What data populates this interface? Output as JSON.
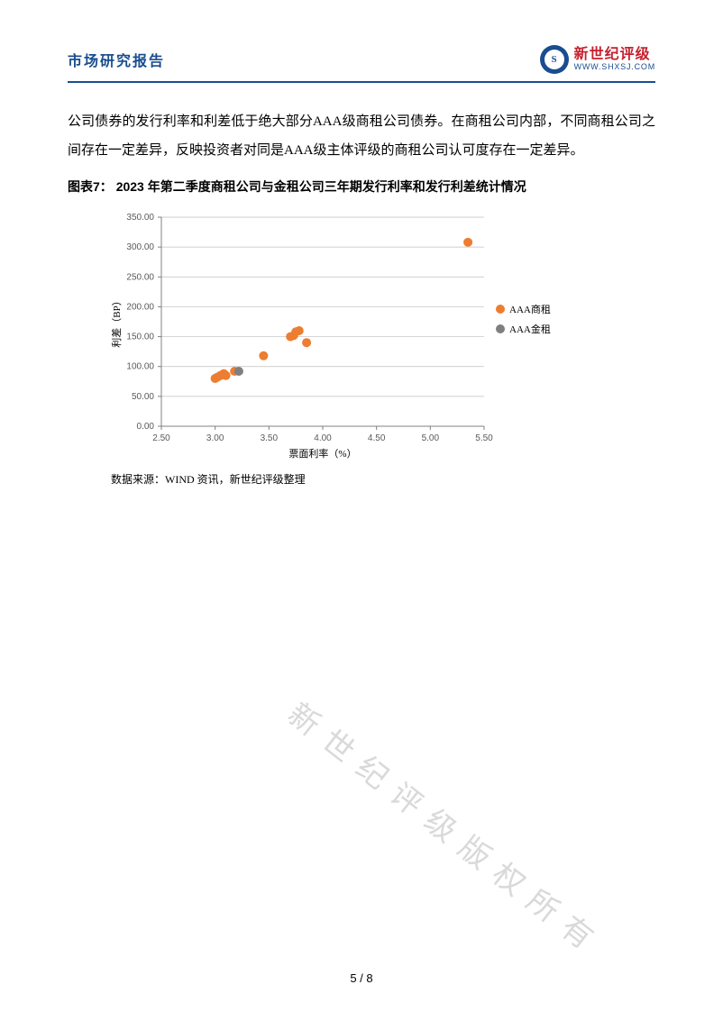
{
  "header": {
    "title": "市场研究报告",
    "brand_name": "新世纪评级",
    "brand_url": "WWW.SHXSJ.COM",
    "logo_glyph": "S"
  },
  "paragraph": "公司债券的发行利率和利差低于绝大部分AAA级商租公司债券。在商租公司内部，不同商租公司之间存在一定差异，反映投资者对同是AAA级主体评级的商租公司认可度存在一定差异。",
  "chart": {
    "caption_prefix": "图表7：",
    "caption": "2023 年第二季度商租公司与金租公司三年期发行利率和发行利差统计情况",
    "type": "scatter",
    "xlabel": "票面利率（%）",
    "ylabel": "利差（BP）",
    "xlim": [
      2.5,
      5.5
    ],
    "xtick_step": 0.5,
    "xticks": [
      "2.50",
      "3.00",
      "3.50",
      "4.00",
      "4.50",
      "5.00",
      "5.50"
    ],
    "ylim": [
      0.0,
      350.0
    ],
    "ytick_step": 50.0,
    "yticks": [
      "0.00",
      "50.00",
      "100.00",
      "150.00",
      "200.00",
      "250.00",
      "300.00",
      "350.00"
    ],
    "background_color": "#ffffff",
    "grid_color": "#bfbfbf",
    "axis_color": "#808080",
    "tick_fontsize": 10,
    "label_fontsize": 11,
    "marker_size": 5,
    "series": [
      {
        "name": "AAA商租",
        "color": "#ed7d31",
        "points": [
          [
            3.0,
            80
          ],
          [
            3.02,
            82
          ],
          [
            3.05,
            85
          ],
          [
            3.08,
            88
          ],
          [
            3.1,
            85
          ],
          [
            3.18,
            92
          ],
          [
            3.45,
            118
          ],
          [
            3.7,
            150
          ],
          [
            3.73,
            152
          ],
          [
            3.75,
            158
          ],
          [
            3.78,
            160
          ],
          [
            3.85,
            140
          ],
          [
            5.35,
            308
          ]
        ]
      },
      {
        "name": "AAA金租",
        "color": "#7f7f7f",
        "points": [
          [
            3.22,
            92
          ]
        ]
      }
    ],
    "legend": {
      "position_right": true,
      "fontsize": 11
    },
    "data_source": "数据来源：WIND 资讯，新世纪评级整理"
  },
  "watermark": "新世纪评级版权所有",
  "page_number": "5 / 8"
}
